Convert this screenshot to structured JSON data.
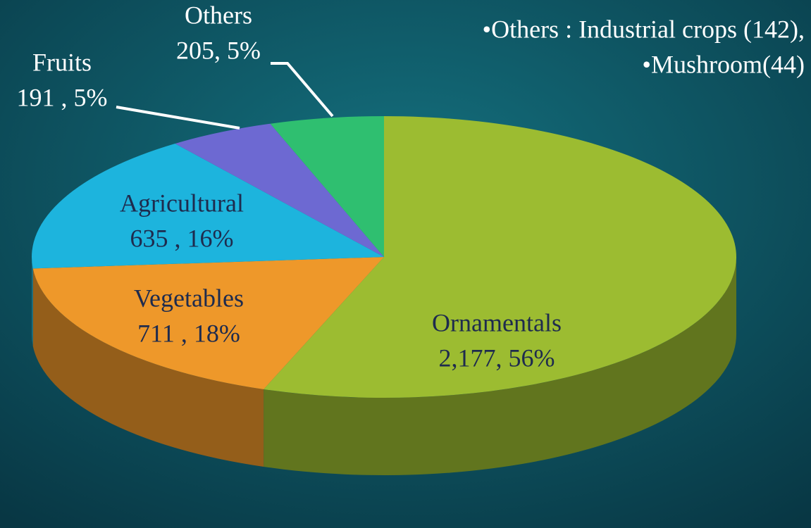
{
  "chart_data": {
    "type": "pie",
    "categories": [
      "Ornamentals",
      "Vegetables",
      "Agricultural",
      "Fruits",
      "Others"
    ],
    "values": [
      2177,
      711,
      635,
      191,
      205
    ],
    "value_labels": [
      "2,177, 56%",
      "711 , 18%",
      "635 , 16%",
      "191 , 5%",
      "205, 5%"
    ],
    "colors": [
      "#9cbc31",
      "#ee982a",
      "#1db4dd",
      "#6d69d2",
      "#2fbf70"
    ],
    "annotations": [
      "•Others : Industrial crops (142),",
      "•Mushroom(44)"
    ]
  }
}
